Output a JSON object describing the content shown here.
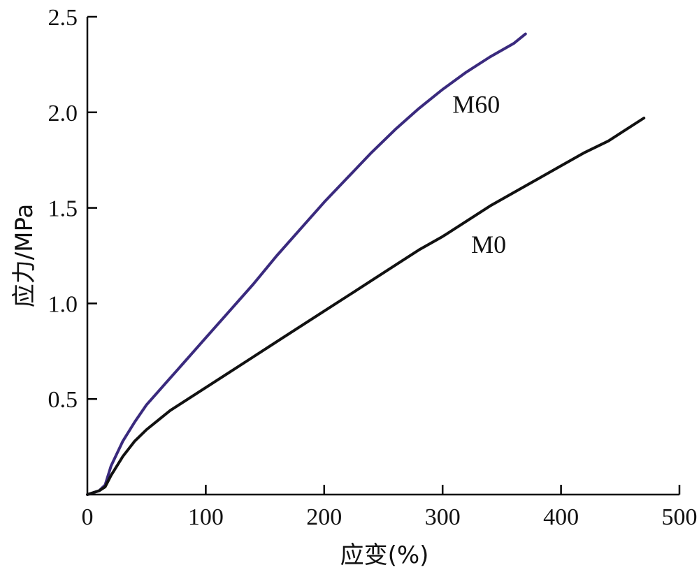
{
  "chart_data": {
    "type": "line",
    "title": "",
    "xlabel": "应变(%)",
    "ylabel": "应力/MPa",
    "xlim": [
      0,
      500
    ],
    "ylim": [
      0,
      2.5
    ],
    "x_ticks": [
      "0",
      "100",
      "200",
      "300",
      "400",
      "500"
    ],
    "y_ticks": [
      "0.5",
      "1.0",
      "1.5",
      "2.0",
      "2.5"
    ],
    "grid": false,
    "legend": "none",
    "series": [
      {
        "name": "M60",
        "color": "#3a2a7e",
        "x": [
          0,
          10,
          15,
          20,
          30,
          40,
          50,
          60,
          70,
          80,
          100,
          120,
          140,
          160,
          180,
          200,
          220,
          240,
          260,
          280,
          300,
          320,
          340,
          360,
          370
        ],
        "y": [
          0.0,
          0.02,
          0.05,
          0.15,
          0.28,
          0.38,
          0.47,
          0.54,
          0.61,
          0.68,
          0.82,
          0.96,
          1.1,
          1.25,
          1.39,
          1.53,
          1.66,
          1.79,
          1.91,
          2.02,
          2.12,
          2.21,
          2.29,
          2.36,
          2.41
        ]
      },
      {
        "name": "M0",
        "color": "#111111",
        "x": [
          0,
          10,
          15,
          20,
          30,
          40,
          50,
          60,
          70,
          80,
          100,
          120,
          140,
          160,
          180,
          200,
          220,
          240,
          260,
          280,
          300,
          320,
          340,
          360,
          380,
          400,
          420,
          440,
          470
        ],
        "y": [
          0.0,
          0.02,
          0.04,
          0.1,
          0.2,
          0.28,
          0.34,
          0.39,
          0.44,
          0.48,
          0.56,
          0.64,
          0.72,
          0.8,
          0.88,
          0.96,
          1.04,
          1.12,
          1.2,
          1.28,
          1.35,
          1.43,
          1.51,
          1.58,
          1.65,
          1.72,
          1.79,
          1.85,
          1.97
        ]
      }
    ],
    "annotations": [
      {
        "text": "M60",
        "series": "M60",
        "at_x": 300,
        "at_y": 2.02
      },
      {
        "text": "M0",
        "series": "M0",
        "at_x": 310,
        "at_y": 1.28
      }
    ]
  }
}
